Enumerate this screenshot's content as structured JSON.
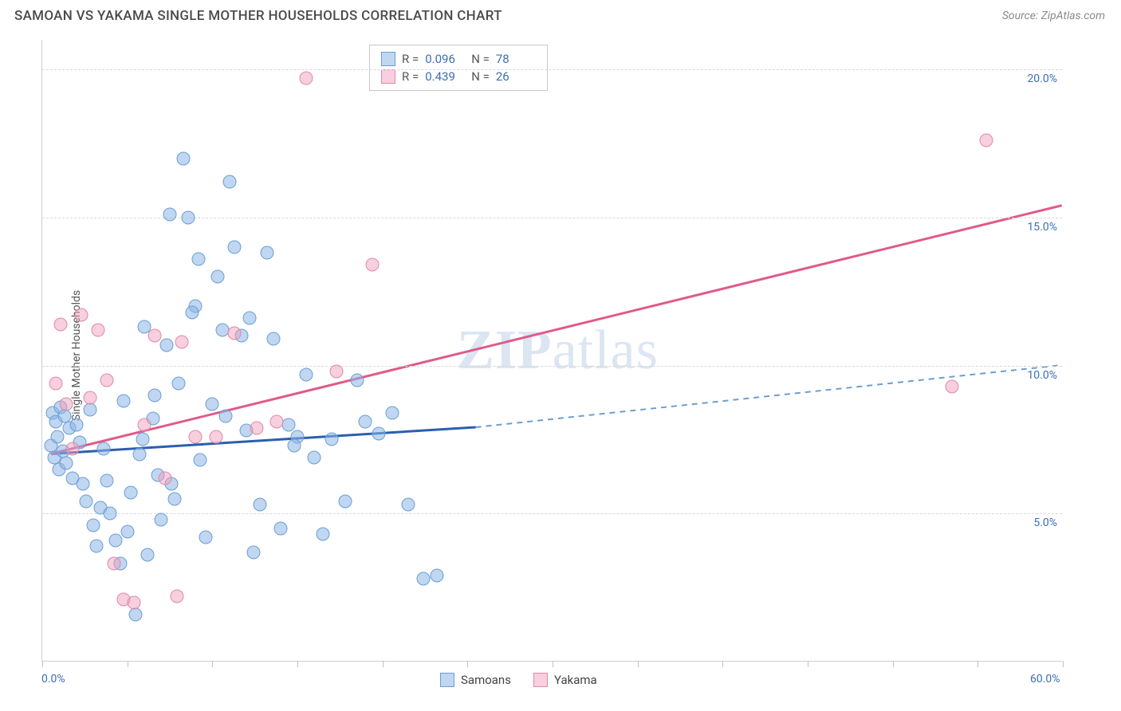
{
  "header": {
    "title": "SAMOAN VS YAKAMA SINGLE MOTHER HOUSEHOLDS CORRELATION CHART",
    "source": "Source: ZipAtlas.com"
  },
  "watermark": "ZIPatlas",
  "chart": {
    "type": "scatter",
    "ylabel": "Single Mother Households",
    "xlim": [
      0,
      60
    ],
    "ylim": [
      0,
      21
    ],
    "yticks": [
      {
        "v": 5.0,
        "label": "5.0%"
      },
      {
        "v": 10.0,
        "label": "10.0%"
      },
      {
        "v": 15.0,
        "label": "15.0%"
      },
      {
        "v": 20.0,
        "label": "20.0%"
      }
    ],
    "xticks": [
      0,
      5,
      10,
      15,
      20,
      25,
      30,
      35,
      40,
      45,
      50,
      55,
      60
    ],
    "xaxis_labels": [
      {
        "v": 0,
        "label": "0.0%"
      },
      {
        "v": 60,
        "label": "60.0%"
      }
    ],
    "grid_color": "#d8d8d8",
    "background_color": "#ffffff",
    "point_radius": 8.5,
    "series": [
      {
        "name": "Samoans",
        "fill": "rgba(140,180,230,0.55)",
        "stroke": "#6a9fd4",
        "line_color": "#2a5fb0",
        "line_dash_color": "#6a9fd4",
        "R": "0.096",
        "N": "78",
        "trend": {
          "x1": 0.5,
          "y1": 7.0,
          "x2": 25.5,
          "y2": 7.9,
          "x3": 60,
          "y3": 10.0
        },
        "points": [
          [
            0.5,
            7.3
          ],
          [
            0.6,
            8.4
          ],
          [
            0.7,
            6.9
          ],
          [
            0.8,
            8.1
          ],
          [
            0.9,
            7.6
          ],
          [
            1.0,
            6.5
          ],
          [
            1.1,
            8.6
          ],
          [
            1.2,
            7.1
          ],
          [
            1.3,
            8.3
          ],
          [
            1.4,
            6.7
          ],
          [
            1.6,
            7.9
          ],
          [
            1.8,
            6.2
          ],
          [
            2.0,
            8.0
          ],
          [
            2.2,
            7.4
          ],
          [
            2.4,
            6.0
          ],
          [
            2.6,
            5.4
          ],
          [
            2.8,
            8.5
          ],
          [
            3.0,
            4.6
          ],
          [
            3.2,
            3.9
          ],
          [
            3.4,
            5.2
          ],
          [
            3.6,
            7.2
          ],
          [
            3.8,
            6.1
          ],
          [
            4.0,
            5.0
          ],
          [
            4.3,
            4.1
          ],
          [
            4.6,
            3.3
          ],
          [
            4.8,
            8.8
          ],
          [
            5.0,
            4.4
          ],
          [
            5.2,
            5.7
          ],
          [
            5.5,
            1.6
          ],
          [
            5.7,
            7.0
          ],
          [
            6.0,
            11.3
          ],
          [
            6.2,
            3.6
          ],
          [
            6.5,
            8.2
          ],
          [
            6.8,
            6.3
          ],
          [
            7.0,
            4.8
          ],
          [
            7.3,
            10.7
          ],
          [
            7.5,
            15.1
          ],
          [
            7.8,
            5.5
          ],
          [
            8.0,
            9.4
          ],
          [
            8.3,
            17.0
          ],
          [
            8.6,
            15.0
          ],
          [
            9.0,
            12.0
          ],
          [
            9.3,
            6.8
          ],
          [
            9.6,
            4.2
          ],
          [
            10.0,
            8.7
          ],
          [
            10.3,
            13.0
          ],
          [
            10.6,
            11.2
          ],
          [
            11.0,
            16.2
          ],
          [
            11.3,
            14.0
          ],
          [
            11.7,
            11.0
          ],
          [
            12.0,
            7.8
          ],
          [
            12.4,
            3.7
          ],
          [
            12.8,
            5.3
          ],
          [
            13.2,
            13.8
          ],
          [
            13.6,
            10.9
          ],
          [
            14.0,
            4.5
          ],
          [
            14.5,
            8.0
          ],
          [
            15.0,
            7.6
          ],
          [
            15.5,
            9.7
          ],
          [
            16.0,
            6.9
          ],
          [
            16.5,
            4.3
          ],
          [
            17.0,
            7.5
          ],
          [
            17.8,
            5.4
          ],
          [
            18.5,
            9.5
          ],
          [
            19.0,
            8.1
          ],
          [
            19.8,
            7.7
          ],
          [
            20.6,
            8.4
          ],
          [
            21.5,
            5.3
          ],
          [
            22.4,
            2.8
          ],
          [
            23.2,
            2.9
          ],
          [
            14.8,
            7.3
          ],
          [
            12.2,
            11.6
          ],
          [
            10.8,
            8.3
          ],
          [
            9.2,
            13.6
          ],
          [
            8.8,
            11.8
          ],
          [
            7.6,
            6.0
          ],
          [
            6.6,
            9.0
          ],
          [
            5.9,
            7.5
          ]
        ]
      },
      {
        "name": "Yakama",
        "fill": "rgba(240,160,190,0.5)",
        "stroke": "#e089a8",
        "line_color": "#e05a8a",
        "R": "0.439",
        "N": "26",
        "trend": {
          "x1": 0.5,
          "y1": 7.0,
          "x2": 60,
          "y2": 15.4
        },
        "points": [
          [
            0.8,
            9.4
          ],
          [
            1.1,
            11.4
          ],
          [
            1.4,
            8.7
          ],
          [
            1.8,
            7.2
          ],
          [
            2.3,
            11.7
          ],
          [
            2.8,
            8.9
          ],
          [
            3.3,
            11.2
          ],
          [
            3.8,
            9.5
          ],
          [
            4.2,
            3.3
          ],
          [
            4.8,
            2.1
          ],
          [
            5.4,
            2.0
          ],
          [
            6.0,
            8.0
          ],
          [
            6.6,
            11.0
          ],
          [
            7.2,
            6.2
          ],
          [
            8.2,
            10.8
          ],
          [
            9.0,
            7.6
          ],
          [
            10.2,
            7.6
          ],
          [
            11.3,
            11.1
          ],
          [
            12.6,
            7.9
          ],
          [
            13.8,
            8.1
          ],
          [
            15.5,
            19.7
          ],
          [
            17.3,
            9.8
          ],
          [
            19.4,
            13.4
          ],
          [
            53.5,
            9.3
          ],
          [
            55.5,
            17.6
          ],
          [
            7.9,
            2.2
          ]
        ]
      }
    ]
  },
  "legend_top": {
    "rows": [
      {
        "swatch_fill": "rgba(140,180,230,0.55)",
        "swatch_stroke": "#6a9fd4",
        "R": "0.096",
        "N": "78"
      },
      {
        "swatch_fill": "rgba(240,160,190,0.5)",
        "swatch_stroke": "#e089a8",
        "R": "0.439",
        "N": "26"
      }
    ]
  },
  "legend_bottom": {
    "items": [
      {
        "swatch_fill": "rgba(140,180,230,0.55)",
        "swatch_stroke": "#6a9fd4",
        "label": "Samoans"
      },
      {
        "swatch_fill": "rgba(240,160,190,0.5)",
        "swatch_stroke": "#e089a8",
        "label": "Yakama"
      }
    ]
  }
}
